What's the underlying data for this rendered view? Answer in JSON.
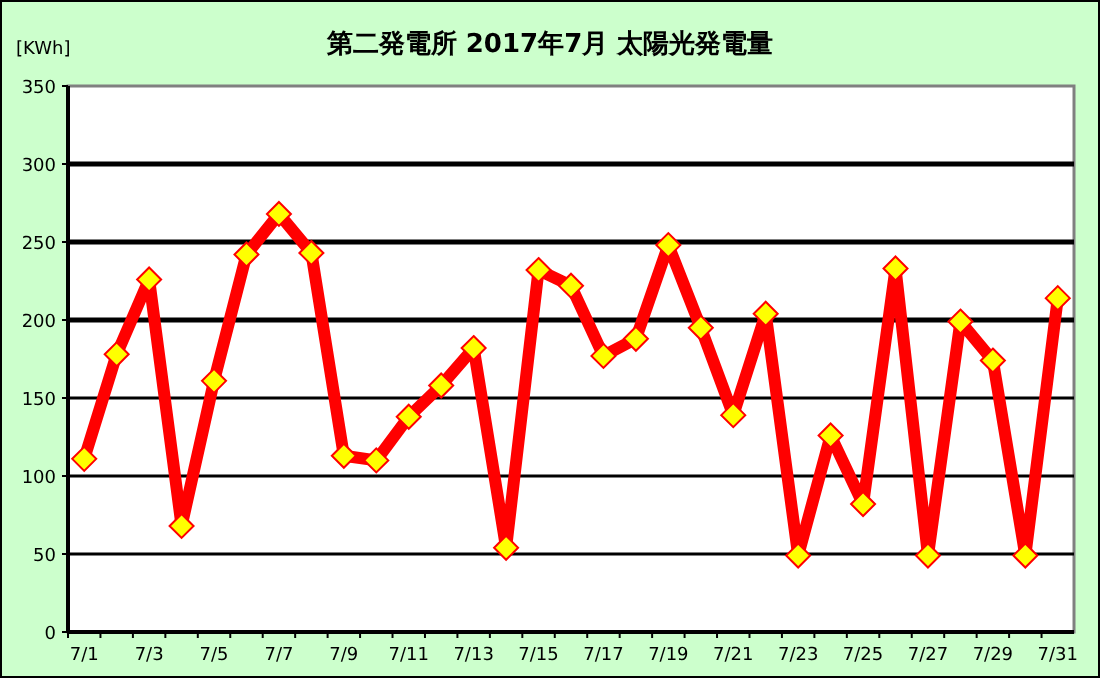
{
  "chart_data": {
    "type": "line",
    "title": "第二発電所  2017年7月 太陽光発電量",
    "ylabel": "[KWh]",
    "categories": [
      "7/1",
      null,
      "7/3",
      null,
      "7/5",
      null,
      "7/7",
      null,
      "7/9",
      null,
      "7/11",
      null,
      "7/13",
      null,
      "7/15",
      null,
      "7/17",
      null,
      "7/19",
      null,
      "7/21",
      null,
      "7/23",
      null,
      "7/25",
      null,
      "7/27",
      null,
      "7/29",
      null,
      "7/31"
    ],
    "series": [
      {
        "color": "#ff0000",
        "values": [
          111,
          178,
          226,
          68,
          161,
          242,
          268,
          243,
          113,
          110,
          138,
          158,
          182,
          54,
          232,
          222,
          177,
          188,
          248,
          195,
          139,
          204,
          49,
          126,
          82,
          233,
          49,
          199,
          174,
          49,
          214
        ]
      }
    ],
    "ylim": [
      0,
      350
    ],
    "yticks": [
      0,
      50,
      100,
      150,
      200,
      250,
      300,
      350
    ],
    "grid": "y",
    "marker": "diamond",
    "line_style": "solid"
  }
}
